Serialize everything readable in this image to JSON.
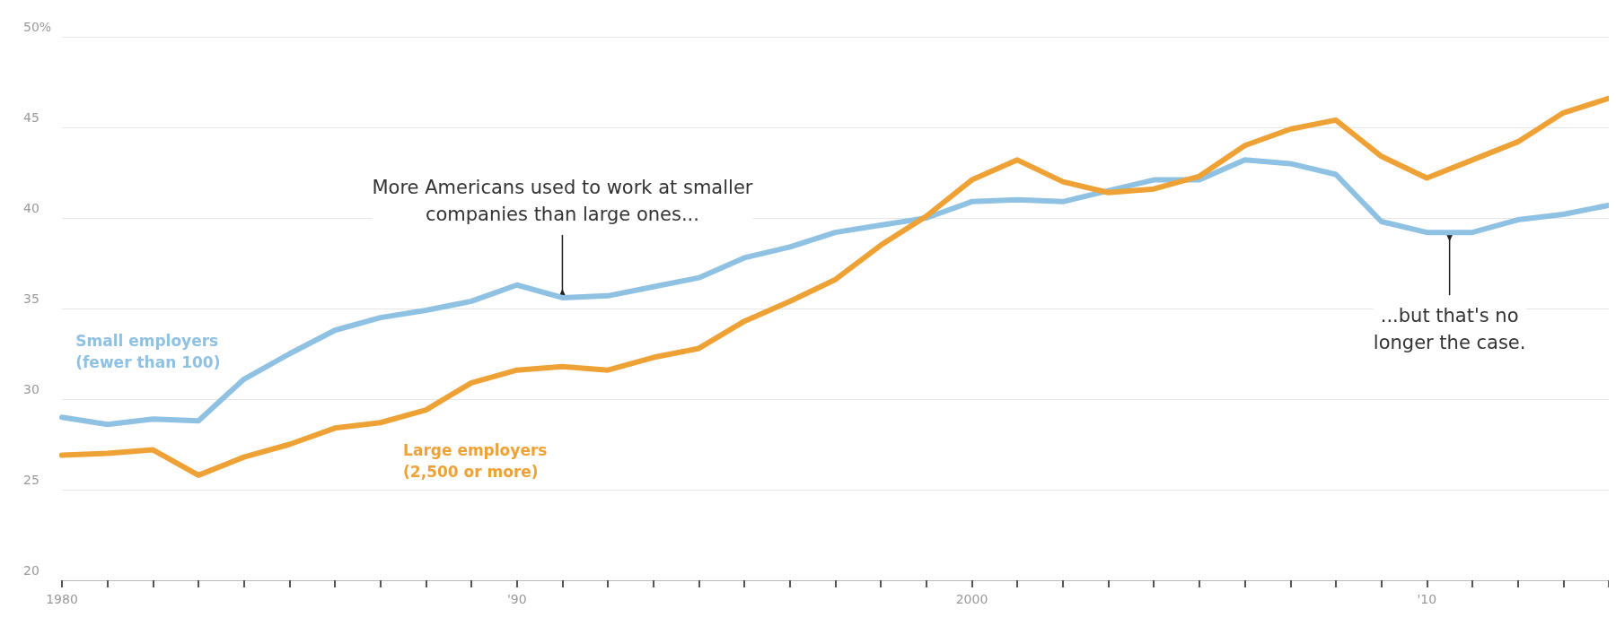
{
  "chart_data": {
    "type": "line",
    "x": [
      1980,
      1981,
      1982,
      1983,
      1984,
      1985,
      1986,
      1987,
      1988,
      1989,
      1990,
      1991,
      1992,
      1993,
      1994,
      1995,
      1996,
      1997,
      1998,
      1999,
      2000,
      2001,
      2002,
      2003,
      2004,
      2005,
      2006,
      2007,
      2008,
      2009,
      2010,
      2011,
      2012,
      2013,
      2014
    ],
    "series": [
      {
        "name": "Small employers\n(fewer than 100)",
        "color": "#8fc1e3",
        "values": [
          29.0,
          28.6,
          28.9,
          28.8,
          31.1,
          32.5,
          33.8,
          34.5,
          34.9,
          35.4,
          36.3,
          35.6,
          35.7,
          36.2,
          36.7,
          37.8,
          38.4,
          39.2,
          39.6,
          40.0,
          40.9,
          41.0,
          40.9,
          41.5,
          42.1,
          42.1,
          43.2,
          43.0,
          42.4,
          39.8,
          39.2,
          39.2,
          39.9,
          40.2,
          40.7
        ]
      },
      {
        "name": "Large employers\n(2,500 or more)",
        "color": "#eea236",
        "values": [
          26.9,
          27.0,
          27.2,
          25.8,
          26.8,
          27.5,
          28.4,
          28.7,
          29.4,
          30.9,
          31.6,
          31.8,
          31.6,
          32.3,
          32.8,
          34.3,
          35.4,
          36.6,
          38.5,
          40.1,
          42.1,
          43.2,
          42.0,
          41.4,
          41.6,
          42.3,
          44.0,
          44.9,
          45.4,
          43.4,
          42.2,
          43.2,
          44.2,
          45.8,
          46.6
        ]
      }
    ],
    "xlim": [
      1980,
      2014
    ],
    "xticks": [
      {
        "value": 1980,
        "label": "1980"
      },
      {
        "value": 1981,
        "label": null
      },
      {
        "value": 1982,
        "label": null
      },
      {
        "value": 1983,
        "label": null
      },
      {
        "value": 1984,
        "label": null
      },
      {
        "value": 1985,
        "label": null
      },
      {
        "value": 1986,
        "label": null
      },
      {
        "value": 1987,
        "label": null
      },
      {
        "value": 1988,
        "label": null
      },
      {
        "value": 1989,
        "label": null
      },
      {
        "value": 1990,
        "label": "'90"
      },
      {
        "value": 1991,
        "label": null
      },
      {
        "value": 1992,
        "label": null
      },
      {
        "value": 1993,
        "label": null
      },
      {
        "value": 1994,
        "label": null
      },
      {
        "value": 1995,
        "label": null
      },
      {
        "value": 1996,
        "label": null
      },
      {
        "value": 1997,
        "label": null
      },
      {
        "value": 1998,
        "label": null
      },
      {
        "value": 1999,
        "label": null
      },
      {
        "value": 2000,
        "label": "2000"
      },
      {
        "value": 2001,
        "label": null
      },
      {
        "value": 2002,
        "label": null
      },
      {
        "value": 2003,
        "label": null
      },
      {
        "value": 2004,
        "label": null
      },
      {
        "value": 2005,
        "label": null
      },
      {
        "value": 2006,
        "label": null
      },
      {
        "value": 2007,
        "label": null
      },
      {
        "value": 2008,
        "label": null
      },
      {
        "value": 2009,
        "label": null
      },
      {
        "value": 2010,
        "label": "'10"
      },
      {
        "value": 2011,
        "label": null
      },
      {
        "value": 2012,
        "label": null
      },
      {
        "value": 2013,
        "label": null
      },
      {
        "value": 2014,
        "label": null
      }
    ],
    "ylim": [
      20,
      50
    ],
    "yticks": [
      20,
      25,
      30,
      35,
      40,
      45,
      {
        "value": 50,
        "label": "50%"
      }
    ],
    "grid": "y",
    "legend": false,
    "marker": "none",
    "line_style": "solid",
    "annotations": [
      {
        "text": "More Americans used to work at smaller\ncompanies than large ones...",
        "x": 1991,
        "y": 35.6
      },
      {
        "text": "...but that's no\nlonger the case.",
        "x": 2010.5,
        "y": 39.2
      }
    ]
  }
}
